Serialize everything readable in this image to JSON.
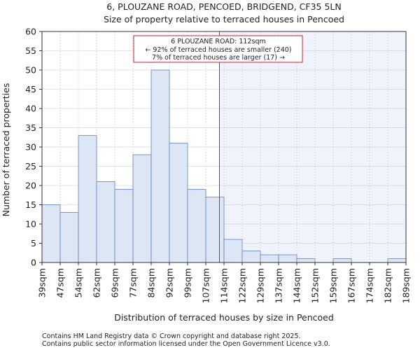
{
  "chart_data": {
    "type": "bar",
    "title_line1": "6, PLOUZANE ROAD, PENCOED, BRIDGEND, CF35 5LN",
    "title_line2": "Size of property relative to terraced houses in Pencoed",
    "xlabel": "Distribution of terraced houses by size in Pencoed",
    "ylabel": "Number of terraced properties",
    "ylim": [
      0,
      60
    ],
    "yticks": [
      0,
      5,
      10,
      15,
      20,
      25,
      30,
      35,
      40,
      45,
      50,
      55,
      60
    ],
    "bin_edges": [
      39,
      47,
      54,
      62,
      69,
      77,
      84,
      92,
      99,
      107,
      114,
      122,
      129,
      137,
      144,
      152,
      159,
      167,
      174,
      182,
      189
    ],
    "tick_labels": [
      "39sqm",
      "47sqm",
      "54sqm",
      "62sqm",
      "69sqm",
      "77sqm",
      "84sqm",
      "92sqm",
      "99sqm",
      "107sqm",
      "114sqm",
      "122sqm",
      "129sqm",
      "137sqm",
      "144sqm",
      "152sqm",
      "159sqm",
      "167sqm",
      "174sqm",
      "182sqm",
      "189sqm"
    ],
    "values": [
      15,
      13,
      33,
      21,
      19,
      28,
      50,
      31,
      19,
      17,
      6,
      3,
      2,
      2,
      1,
      0,
      1,
      0,
      0,
      1
    ],
    "marker": {
      "value_bin_position": 9.75,
      "line1": "6 PLOUZANE ROAD: 112sqm",
      "line2": "← 92% of terraced houses are smaller (240)",
      "line3": "7% of terraced houses are larger (17) →"
    },
    "colors": {
      "bar_fill": "#dce6f5",
      "bar_stroke": "#5b84c4",
      "marker_line": "#c0262d",
      "highlight_bg": "#f0f3fb",
      "grid": "#c8c8c8"
    },
    "footer_line1": "Contains HM Land Registry data © Crown copyright and database right 2025.",
    "footer_line2": "Contains public sector information licensed under the Open Government Licence v3.0."
  }
}
